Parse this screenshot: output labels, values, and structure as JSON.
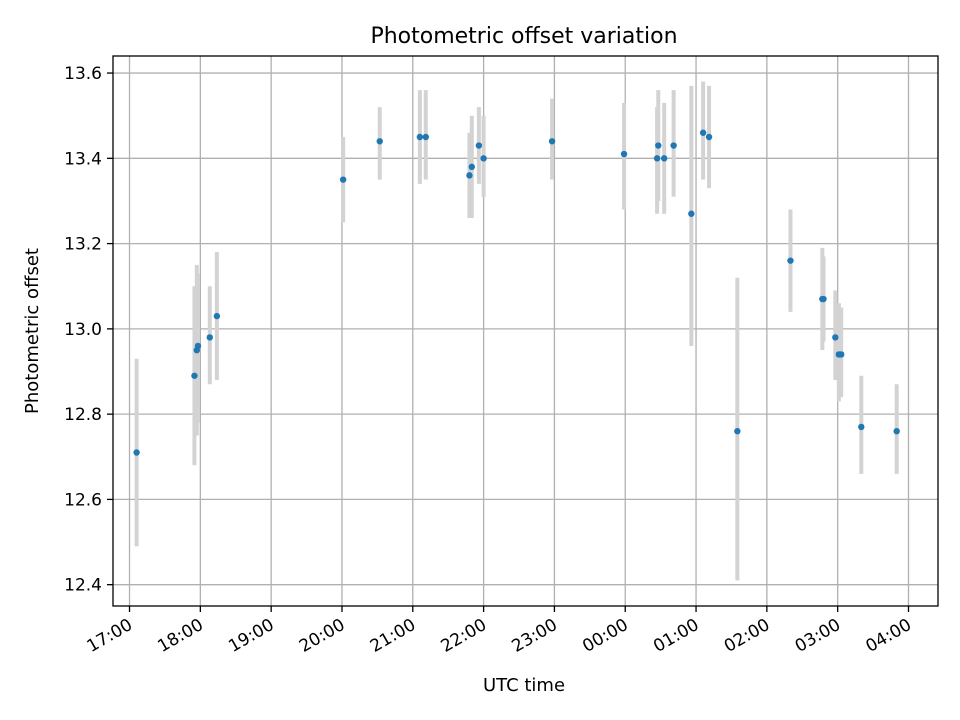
{
  "chart_data": {
    "type": "scatter",
    "title": "Photometric offset variation",
    "xlabel": "UTC time",
    "ylabel": "Photometric offset",
    "x_tick_labels": [
      "17:00",
      "18:00",
      "19:00",
      "20:00",
      "21:00",
      "22:00",
      "23:00",
      "00:00",
      "01:00",
      "02:00",
      "03:00",
      "04:00"
    ],
    "y_tick_labels": [
      "12.4",
      "12.6",
      "12.8",
      "13.0",
      "13.2",
      "13.4",
      "13.6"
    ],
    "y_ticks": [
      12.4,
      12.6,
      12.8,
      13.0,
      13.2,
      13.4,
      13.6
    ],
    "xlim": [
      "16:46",
      "04:25"
    ],
    "ylim": [
      12.35,
      13.64
    ],
    "grid": true,
    "colors": {
      "point": "#1f77b4",
      "errorbar": "#d3d3d3",
      "grid": "#b0b0b0"
    },
    "points": [
      {
        "x": "17:06",
        "y": 12.71,
        "err_low": 12.49,
        "err_high": 12.93
      },
      {
        "x": "17:55",
        "y": 12.89,
        "err_low": 12.68,
        "err_high": 13.1
      },
      {
        "x": "17:57",
        "y": 12.95,
        "err_low": 12.75,
        "err_high": 13.15
      },
      {
        "x": "17:58",
        "y": 12.96,
        "err_low": 12.78,
        "err_high": 13.13
      },
      {
        "x": "18:08",
        "y": 12.98,
        "err_low": 12.87,
        "err_high": 13.1
      },
      {
        "x": "18:14",
        "y": 13.03,
        "err_low": 12.88,
        "err_high": 13.18
      },
      {
        "x": "20:01",
        "y": 13.35,
        "err_low": 13.25,
        "err_high": 13.45
      },
      {
        "x": "20:32",
        "y": 13.44,
        "err_low": 13.35,
        "err_high": 13.52
      },
      {
        "x": "21:06",
        "y": 13.45,
        "err_low": 13.34,
        "err_high": 13.56
      },
      {
        "x": "21:11",
        "y": 13.45,
        "err_low": 13.35,
        "err_high": 13.56
      },
      {
        "x": "21:48",
        "y": 13.36,
        "err_low": 13.26,
        "err_high": 13.46
      },
      {
        "x": "21:50",
        "y": 13.38,
        "err_low": 13.26,
        "err_high": 13.5
      },
      {
        "x": "21:56",
        "y": 13.43,
        "err_low": 13.34,
        "err_high": 13.52
      },
      {
        "x": "22:00",
        "y": 13.4,
        "err_low": 13.31,
        "err_high": 13.5
      },
      {
        "x": "22:58",
        "y": 13.44,
        "err_low": 13.35,
        "err_high": 13.54
      },
      {
        "x": "23:59",
        "y": 13.41,
        "err_low": 13.28,
        "err_high": 13.53
      },
      {
        "x": "00:27",
        "y": 13.4,
        "err_low": 13.27,
        "err_high": 13.52
      },
      {
        "x": "00:28",
        "y": 13.43,
        "err_low": 13.3,
        "err_high": 13.56
      },
      {
        "x": "00:33",
        "y": 13.4,
        "err_low": 13.27,
        "err_high": 13.53
      },
      {
        "x": "00:41",
        "y": 13.43,
        "err_low": 13.31,
        "err_high": 13.56
      },
      {
        "x": "00:56",
        "y": 13.27,
        "err_low": 12.96,
        "err_high": 13.57
      },
      {
        "x": "01:06",
        "y": 13.46,
        "err_low": 13.35,
        "err_high": 13.58
      },
      {
        "x": "01:11",
        "y": 13.45,
        "err_low": 13.33,
        "err_high": 13.57
      },
      {
        "x": "01:35",
        "y": 12.76,
        "err_low": 12.41,
        "err_high": 13.12
      },
      {
        "x": "02:20",
        "y": 13.16,
        "err_low": 13.04,
        "err_high": 13.28
      },
      {
        "x": "02:47",
        "y": 13.07,
        "err_low": 12.95,
        "err_high": 13.19
      },
      {
        "x": "02:48",
        "y": 13.07,
        "err_low": 12.97,
        "err_high": 13.17
      },
      {
        "x": "02:58",
        "y": 12.98,
        "err_low": 12.88,
        "err_high": 13.09
      },
      {
        "x": "03:01",
        "y": 12.94,
        "err_low": 12.83,
        "err_high": 13.06
      },
      {
        "x": "03:03",
        "y": 12.94,
        "err_low": 12.84,
        "err_high": 13.05
      },
      {
        "x": "03:20",
        "y": 12.77,
        "err_low": 12.66,
        "err_high": 12.89
      },
      {
        "x": "03:50",
        "y": 12.76,
        "err_low": 12.66,
        "err_high": 12.87
      }
    ]
  }
}
